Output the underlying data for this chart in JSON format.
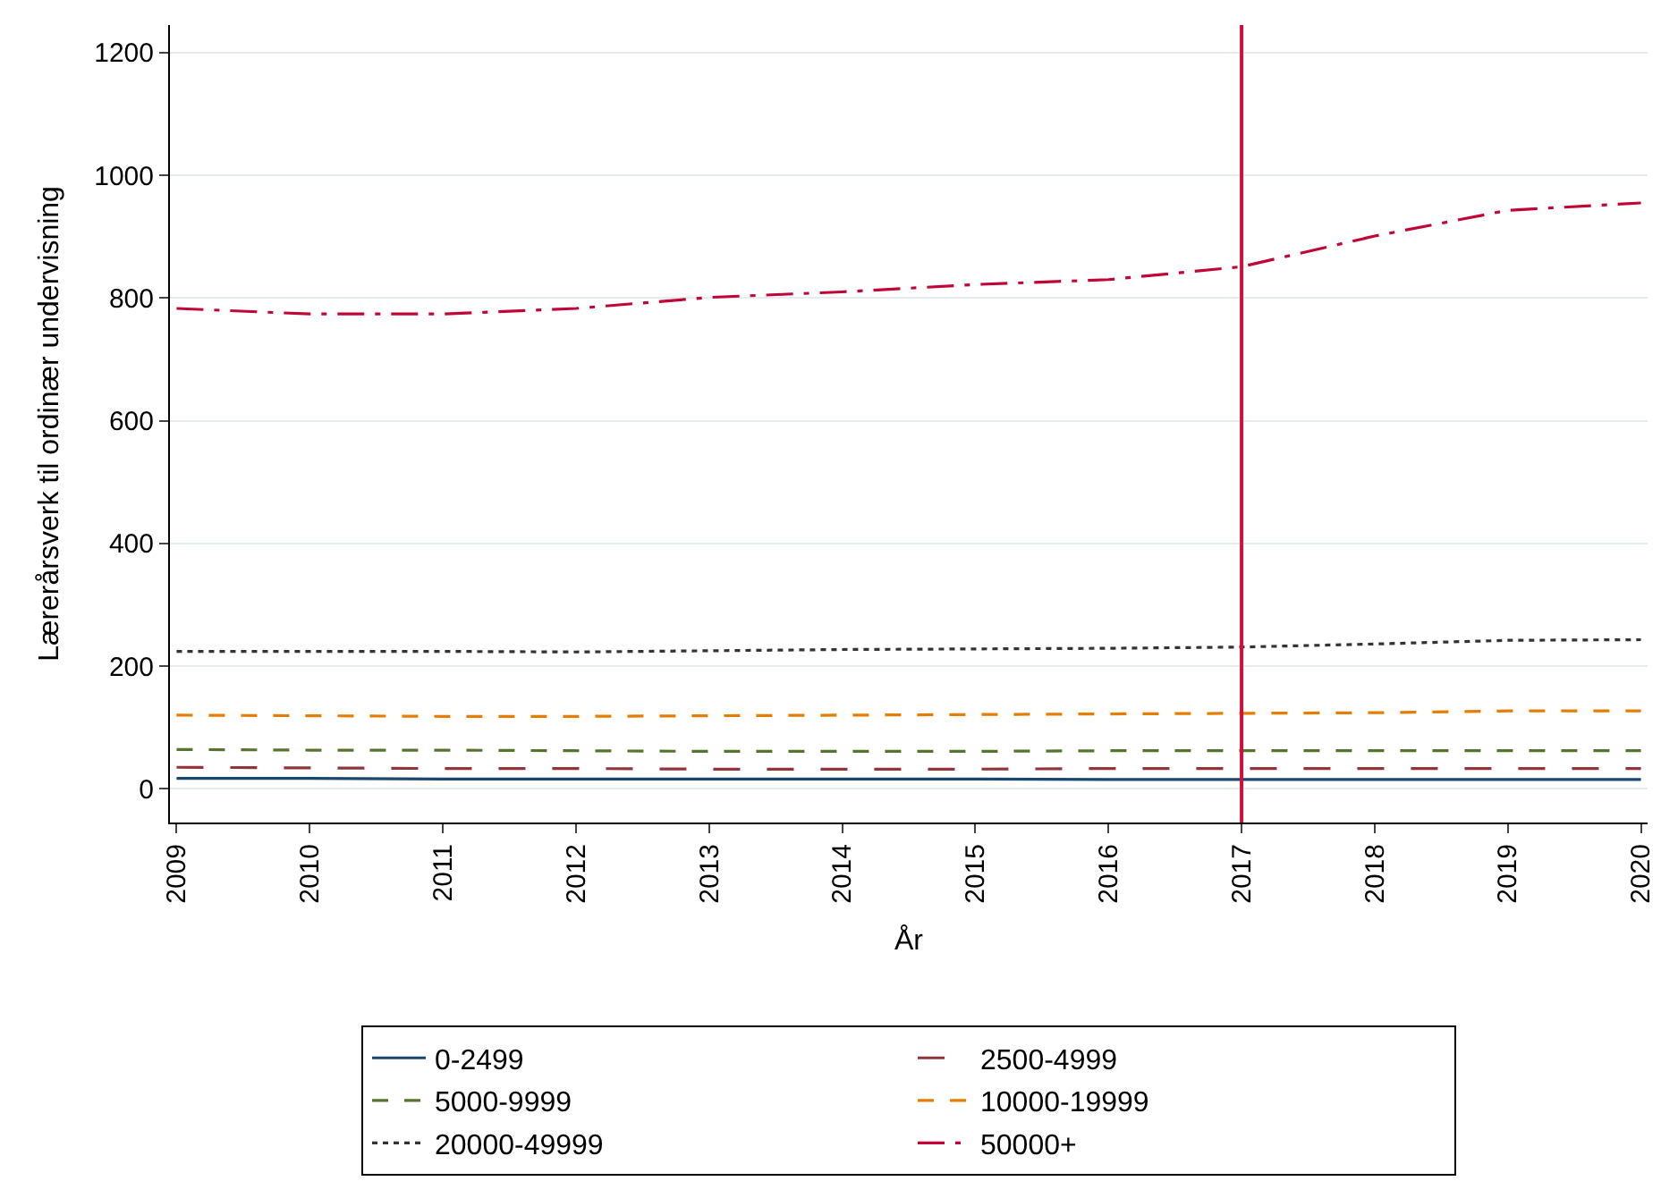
{
  "chart_data": {
    "type": "line",
    "xlabel": "År",
    "ylabel": "Lærerårsverk til ordinær undervisning",
    "x": [
      2009,
      2010,
      2011,
      2012,
      2013,
      2014,
      2015,
      2016,
      2017,
      2018,
      2019,
      2020
    ],
    "series": [
      {
        "name": "0-2499",
        "color": "#1a476f",
        "line_style": "solid",
        "values": [
          17,
          17,
          16,
          16,
          16,
          16,
          16,
          15,
          15,
          15,
          15,
          15
        ]
      },
      {
        "name": "2500-4999",
        "color": "#90353b",
        "line_style": "longdash",
        "values": [
          35,
          34,
          33,
          33,
          32,
          32,
          32,
          33,
          33,
          33,
          33,
          33
        ]
      },
      {
        "name": "5000-9999",
        "color": "#55752f",
        "line_style": "dashed",
        "values": [
          64,
          63,
          63,
          62,
          61,
          61,
          61,
          62,
          62,
          62,
          62,
          62
        ]
      },
      {
        "name": "10000-19999",
        "color": "#e37e00",
        "line_style": "shortdash",
        "values": [
          120,
          119,
          118,
          118,
          119,
          120,
          121,
          122,
          123,
          124,
          127,
          127
        ]
      },
      {
        "name": "20000-49999",
        "color": "#333333",
        "line_style": "dotted",
        "values": [
          224,
          224,
          224,
          223,
          225,
          227,
          228,
          229,
          231,
          236,
          242,
          243
        ]
      },
      {
        "name": "50000+",
        "color": "#c10534",
        "line_style": "dashdot",
        "values": [
          783,
          774,
          774,
          783,
          801,
          810,
          822,
          830,
          851,
          901,
          943,
          955
        ]
      }
    ],
    "xlim": [
      2008.95,
      2020.05
    ],
    "xticks": [
      2009,
      2010,
      2011,
      2012,
      2013,
      2014,
      2015,
      2016,
      2017,
      2018,
      2019,
      2020
    ],
    "ylim": [
      -55,
      1245
    ],
    "yticks": [
      0,
      200,
      400,
      600,
      800,
      1000,
      1200
    ],
    "ref_lines": [
      {
        "axis": "x",
        "value": 2017,
        "color": "#d0103a"
      }
    ],
    "grid": "y",
    "legend": "bottom"
  }
}
